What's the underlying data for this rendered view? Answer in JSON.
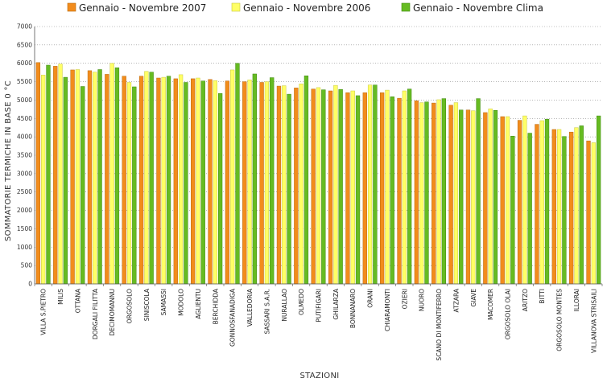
{
  "chart_data": {
    "type": "bar",
    "xlabel": "STAZIONI",
    "ylabel": "SOMMATORIE TERMICHE IN BASE 0 °C",
    "ylim": [
      0,
      7000
    ],
    "yticks": [
      0,
      500,
      1000,
      1500,
      2000,
      2500,
      3000,
      3500,
      4000,
      4500,
      5000,
      5500,
      6000,
      6500,
      7000
    ],
    "grid": "horizontal-dotted",
    "legend_position": "top",
    "categories": [
      "VILLA S.PIETRO",
      "MILIS",
      "OTTANA",
      "DORGALI FILITTA",
      "DECIMOMANNU",
      "ORGOSOLO",
      "SINISCOLA",
      "SAMASSI",
      "MODOLO",
      "AGLIENTU",
      "BERCHIDDA",
      "GONNOSFANADIGA",
      "VALLEDORIA",
      "SASSARI S.A.R.",
      "NURALLAO",
      "OLMEDO",
      "PUTIFIGARI",
      "GHILARZA",
      "BONNANARO",
      "ORANI",
      "CHIARAMONTI",
      "OZIERI",
      "NUORO",
      "SCANO DI MONTIFERRO",
      "ATZARA",
      "GIAVE",
      "MACOMER",
      "ORGOSOLO OLAI",
      "ARITZO",
      "BITTI",
      "ORGOSOLO MONTES",
      "ILLORAI",
      "VILLANOVA STRISAILI"
    ],
    "series": [
      {
        "name": "Gennaio - Novembre 2007",
        "color": "#f28c1c",
        "values": [
          6020,
          5920,
          5820,
          5800,
          5700,
          5650,
          5650,
          5600,
          5580,
          5580,
          5560,
          5520,
          5500,
          5480,
          5380,
          5330,
          5300,
          5250,
          5200,
          5200,
          5200,
          5050,
          4980,
          4920,
          4860,
          4730,
          4660,
          4550,
          4450,
          4340,
          4200,
          4130,
          3890
        ]
      },
      {
        "name": "Gennaio - Novembre 2006",
        "color": "#ffff66",
        "values": [
          5680,
          5980,
          5830,
          5760,
          6000,
          5480,
          5780,
          5620,
          5690,
          5600,
          5530,
          5820,
          5550,
          5500,
          5390,
          5440,
          5340,
          5400,
          5250,
          5410,
          5270,
          5250,
          4930,
          5010,
          4930,
          4710,
          4760,
          4550,
          4570,
          4440,
          4200,
          4250,
          3840
        ]
      },
      {
        "name": "Gennaio - Novembre Clima",
        "color": "#66bb22",
        "values": [
          5950,
          5620,
          5370,
          5830,
          5880,
          5360,
          5760,
          5650,
          5480,
          5520,
          5180,
          6000,
          5710,
          5610,
          5160,
          5660,
          5280,
          5290,
          5120,
          5410,
          5090,
          5300,
          4950,
          5040,
          4730,
          5040,
          4720,
          4020,
          4100,
          4480,
          4010,
          4300,
          4570
        ]
      }
    ]
  }
}
